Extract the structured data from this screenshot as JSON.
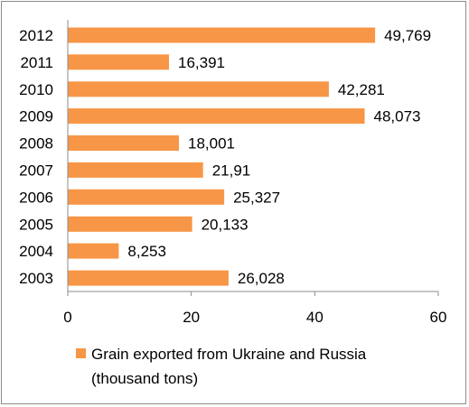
{
  "chart_data": {
    "type": "bar",
    "orientation": "horizontal",
    "categories": [
      "2012",
      "2011",
      "2010",
      "2009",
      "2008",
      "2007",
      "2006",
      "2005",
      "2004",
      "2003"
    ],
    "values": [
      49.769,
      16.391,
      42.281,
      48.073,
      18.001,
      21.91,
      25.327,
      20.133,
      8.253,
      26.028
    ],
    "value_labels": [
      "49,769",
      "16,391",
      "42,281",
      "48,073",
      "18,001",
      "21,91",
      "25,327",
      "20,133",
      "8,253",
      "26,028"
    ],
    "series": [
      {
        "name": "Grain exported from Ukraine and Russia (thousand tons)",
        "name_lines": [
          "Grain exported from Ukraine and Russia",
          "(thousand tons)"
        ],
        "color": "#F79646"
      }
    ],
    "xlim": [
      0,
      60
    ],
    "xticks": [
      0,
      20,
      40,
      60
    ],
    "xtick_labels": [
      "0",
      "20",
      "40",
      "60"
    ],
    "grid": false,
    "legend_position": "bottom"
  }
}
